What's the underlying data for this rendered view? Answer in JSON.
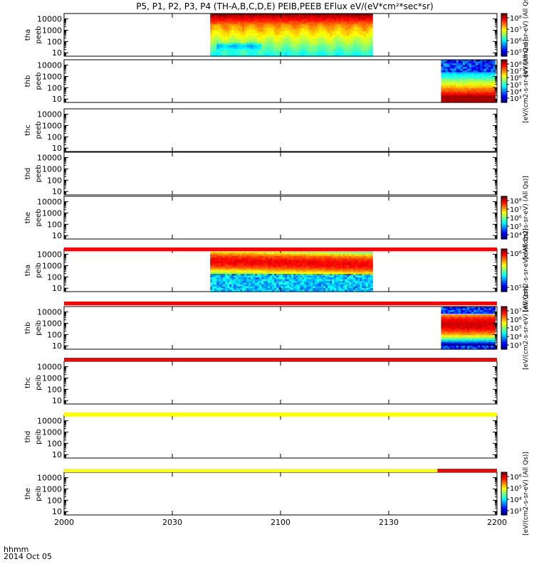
{
  "chart_data": {
    "type": "heatmap",
    "title": "P5, P1, P2, P3, P4 (TH-A,B,C,D,E) PEIB,PEEB EFlux eV/(eV*cm²*sec*sr)",
    "x_ticks": [
      "2000",
      "2030",
      "2100",
      "2130",
      "2200"
    ],
    "x_tick_minutes": [
      0,
      30,
      60,
      90,
      120
    ],
    "xlim_minutes": [
      0,
      120
    ],
    "x_footer": [
      "hhmm",
      "2014 Oct 05"
    ],
    "y_scale": "log",
    "ylim": [
      5,
      30000
    ],
    "y_ticks": [
      10000,
      1000,
      100,
      10
    ],
    "y_tick_labels": [
      "10000",
      "1000",
      "100",
      "10"
    ],
    "panels": [
      {
        "label": [
          "tha",
          "peeb"
        ],
        "data": [
          {
            "start": 40.5,
            "end": 85.5,
            "kind": "electron"
          }
        ],
        "colorbar": {
          "ticks": [
            "10⁸",
            "10⁷",
            "10⁶",
            "10⁵"
          ],
          "unit": "[eV/(cm2-s-sr-eV) (All Qs)]"
        }
      },
      {
        "label": [
          "thb",
          "peeb"
        ],
        "data": [
          {
            "start": 104.5,
            "end": 119.5,
            "kind": "thb_e"
          }
        ],
        "colorbar": {
          "ticks": [
            "10⁸",
            "10⁷",
            "10⁶",
            "10⁵",
            "10⁴",
            "10³"
          ],
          "unit": "[eV/(cm2-s-sr-eV) (All Qs)]"
        }
      },
      {
        "label": [
          "thc",
          "peeb"
        ],
        "data": [],
        "colorbar": null
      },
      {
        "label": [
          "thd",
          "peeb"
        ],
        "data": [],
        "colorbar": null
      },
      {
        "label": [
          "the",
          "peeb"
        ],
        "data": [],
        "colorbar": {
          "ticks": [
            "10⁸",
            "10⁷",
            "10⁶",
            "10⁵",
            "10⁴"
          ],
          "unit": "[eV/(cm2-s-sr-eV) (All Qs)]"
        }
      },
      {
        "label": [
          "tha",
          "peib"
        ],
        "data": [
          {
            "start": 40.5,
            "end": 85.5,
            "kind": "ion"
          }
        ],
        "colorbar": {
          "ticks": [
            "10⁶",
            "10⁵"
          ],
          "unit": "[eV/(cm2-s-sr-eV) (All Qs)]"
        }
      },
      {
        "label": [
          "thb",
          "peib"
        ],
        "data": [
          {
            "start": 104.5,
            "end": 119.5,
            "kind": "thb_i"
          }
        ],
        "colorbar": {
          "ticks": [
            "10⁷",
            "10⁶",
            "10⁵",
            "10⁴",
            "10³"
          ],
          "unit": "[eV/(cm2-s-sr-eV) (All Qs)]"
        }
      },
      {
        "label": [
          "thc",
          "peib"
        ],
        "data": [],
        "colorbar": null
      },
      {
        "label": [
          "thd",
          "peib"
        ],
        "data": [],
        "colorbar": null
      },
      {
        "label": [
          "the",
          "peib"
        ],
        "data": [],
        "colorbar": {
          "ticks": [
            "10⁶",
            "10⁵",
            "10⁴",
            "10³"
          ],
          "unit": "[eV/(cm2-s-sr-eV) (All Qs)]"
        }
      }
    ],
    "status_bars": [
      {
        "after_panel": 5,
        "segments": [
          {
            "start": 0,
            "end": 120,
            "color": "#ff0000"
          }
        ]
      },
      {
        "after_panel": 6,
        "segments": [
          {
            "start": 0,
            "end": 120,
            "color": "#ff0000"
          }
        ]
      },
      {
        "after_panel": 7,
        "segments": [
          {
            "start": 0,
            "end": 120,
            "color": "#ff0000"
          }
        ]
      },
      {
        "after_panel": 8,
        "segments": [
          {
            "start": 0,
            "end": 120,
            "color": "#ffff00"
          }
        ]
      },
      {
        "after_panel": 9,
        "segments": [
          {
            "start": 0,
            "end": 103.5,
            "color": "#ffff00"
          },
          {
            "start": 103.5,
            "end": 120,
            "color": "#ff0000"
          }
        ]
      }
    ]
  }
}
